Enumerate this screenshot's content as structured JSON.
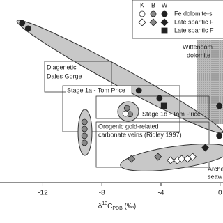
{
  "chart_data": {
    "type": "scatter",
    "x_label": {
      "prefix": "δ",
      "sup": "13",
      "main": "C",
      "sub": "PDB",
      "suffix": " (‰)"
    },
    "xlim": [
      -14.9,
      0.2
    ],
    "xticks": [
      -12,
      -8,
      -4,
      0
    ],
    "ylim": [
      0,
      10
    ],
    "legend": {
      "columns": [
        "K",
        "B",
        "W"
      ],
      "colors": [
        "#ffffff",
        "#888888",
        "#222222"
      ],
      "rows": [
        {
          "label": "Fe dolomite-si",
          "marker": "circle",
          "symbols": [
            0,
            1,
            2
          ]
        },
        {
          "label": "Late sparitic F",
          "marker": "diamond",
          "symbols": [
            0,
            1,
            2
          ]
        },
        {
          "label": "Late sparitic F",
          "marker": "square",
          "symbols": [
            2
          ]
        }
      ]
    },
    "series": [
      {
        "row": 0,
        "column": 2,
        "x": [
          -13.4,
          -13.0,
          -5.5,
          -4.1,
          -0.05,
          -0.05
        ],
        "y": [
          8.74,
          8.44,
          5.04,
          4.62,
          4.2,
          2.56
        ]
      },
      {
        "row": 0,
        "column": 1,
        "x": [
          -6.3,
          -6.1,
          -9.18,
          -9.18,
          -9.18,
          -9.18
        ],
        "y": [
          4.08,
          3.75,
          3.32,
          2.94,
          2.56,
          2.18
        ]
      },
      {
        "row": 0,
        "column": 0,
        "x": [
          -6.4
        ],
        "y": [
          3.78
        ]
      },
      {
        "row": 1,
        "column": 1,
        "x": [
          -6.0,
          -4.2
        ],
        "y": [
          1.3,
          1.41
        ]
      },
      {
        "row": 1,
        "column": 2,
        "x": [
          -1.0
        ],
        "y": [
          1.91
        ]
      },
      {
        "row": 1,
        "column": 0,
        "x": [
          -3.35,
          -2.9,
          -2.6,
          -2.2,
          -1.85
        ],
        "y": [
          1.22,
          1.22,
          1.3,
          1.3,
          1.41
        ]
      },
      {
        "row": 2,
        "column": 2,
        "x": [
          -3.8
        ],
        "y": [
          4.2
        ]
      }
    ],
    "annotations": {
      "wittenoom": [
        "Wittenoom",
        "dolomite"
      ],
      "diagenetic": [
        "Diagenetic",
        "Dales Gorge"
      ],
      "stage1a": "Stage 1a - Tom Price",
      "stage1b": "Stage 1b - Tom Price",
      "orogenic": [
        "Orogenic gold-related",
        "carbonate veins (Ridley 1997)"
      ],
      "archean": [
        "Arche",
        "seaw"
      ]
    }
  }
}
